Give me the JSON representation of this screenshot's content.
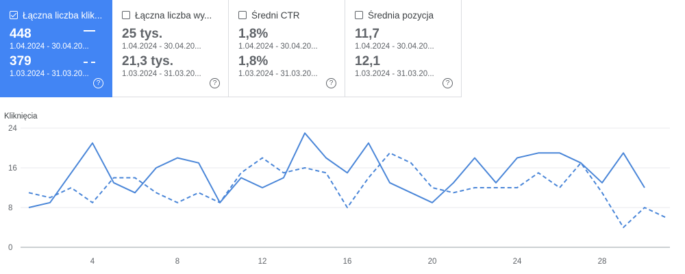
{
  "cards": [
    {
      "label": "Łączna liczba klik...",
      "value": "448",
      "range": "1.04.2024 - 30.04.20...",
      "value2": "379",
      "range2": "1.03.2024 - 31.03.20...",
      "help": "?",
      "active": true
    },
    {
      "label": "Łączna liczba wy...",
      "value": "25 tys.",
      "range": "1.04.2024 - 30.04.20...",
      "value2": "21,3 tys.",
      "range2": "1.03.2024 - 31.03.20...",
      "help": "?",
      "active": false
    },
    {
      "label": "Średni CTR",
      "value": "1,8%",
      "range": "1.04.2024 - 30.04.20...",
      "value2": "1,8%",
      "range2": "1.03.2024 - 31.03.20...",
      "help": "?",
      "active": false
    },
    {
      "label": "Średnia pozycja",
      "value": "11,7",
      "range": "1.04.2024 - 30.04.20...",
      "value2": "12,1",
      "range2": "1.03.2024 - 31.03.20...",
      "help": "?",
      "active": false
    }
  ],
  "colors": {
    "accent": "#4285f4",
    "line": "#4a86d8",
    "grid": "#e8eaed"
  },
  "chart_data": {
    "type": "line",
    "ylabel": "Kliknięcia",
    "ylim": [
      0,
      24
    ],
    "xlim": [
      1,
      31
    ],
    "yticks": [
      "0",
      "8",
      "16",
      "24"
    ],
    "yticks_values": [
      0,
      8,
      16,
      24
    ],
    "xticks": [
      "4",
      "8",
      "12",
      "16",
      "20",
      "24",
      "28"
    ],
    "xticks_values": [
      4,
      8,
      12,
      16,
      20,
      24,
      28
    ],
    "grid": true,
    "series": [
      {
        "style": "solid",
        "x": [
          1,
          2,
          3,
          4,
          5,
          6,
          7,
          8,
          9,
          10,
          11,
          12,
          13,
          14,
          15,
          16,
          17,
          18,
          19,
          20,
          21,
          22,
          23,
          24,
          25,
          26,
          27,
          28,
          29,
          30
        ],
        "values": [
          8,
          9,
          15,
          21,
          13,
          11,
          16,
          18,
          17,
          9,
          14,
          12,
          14,
          23,
          18,
          15,
          21,
          13,
          11,
          9,
          13,
          18,
          13,
          18,
          19,
          19,
          17,
          13,
          19,
          12
        ]
      },
      {
        "style": "dashed",
        "x": [
          1,
          2,
          3,
          4,
          5,
          6,
          7,
          8,
          9,
          10,
          11,
          12,
          13,
          14,
          15,
          16,
          17,
          18,
          19,
          20,
          21,
          22,
          23,
          24,
          25,
          26,
          27,
          28,
          29,
          30,
          31
        ],
        "values": [
          11,
          10,
          12,
          9,
          14,
          14,
          11,
          9,
          11,
          9,
          15,
          18,
          15,
          16,
          15,
          8,
          14,
          19,
          17,
          12,
          11,
          12,
          12,
          12,
          15,
          12,
          17,
          11,
          4,
          8,
          6
        ]
      }
    ]
  }
}
